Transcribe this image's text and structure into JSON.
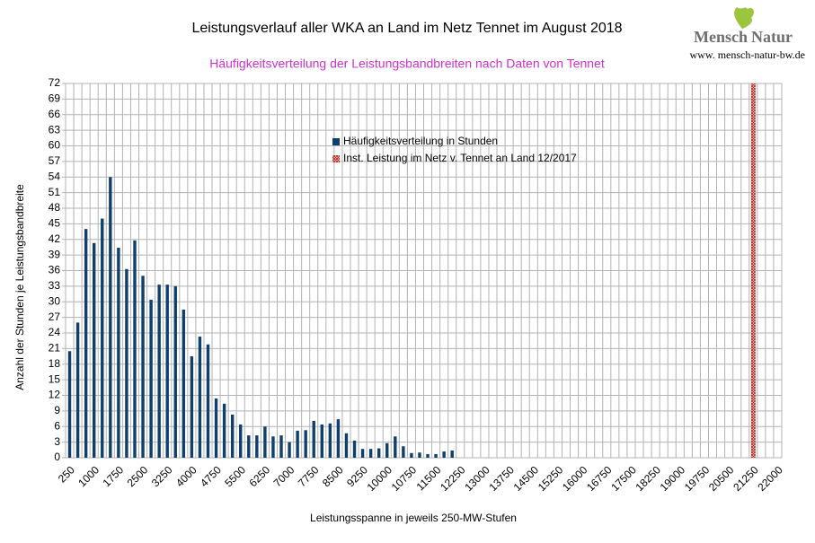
{
  "logo": {
    "word1": "Mensch",
    "word2": "Natur",
    "url": "www. mensch-natur-bw.de"
  },
  "chart_data": {
    "type": "bar",
    "title": "Leistungsverlauf aller WKA an Land im Netz Tennet im August 2018",
    "subtitle": "Häufigkeitsverteilung der Leistungsbandbreiten nach Daten von Tennet",
    "y_label": "Anzahl der Stunden je Leistungsbandbreite",
    "x_label": "Leistungsspanne in jeweils 250-MW-Stufen",
    "categories": [
      "250",
      null,
      null,
      "1000",
      null,
      null,
      "1750",
      null,
      null,
      "2500",
      null,
      null,
      "3250",
      null,
      null,
      "4000",
      null,
      null,
      "4750",
      null,
      null,
      "5500",
      null,
      null,
      "6250",
      null,
      null,
      "7000",
      null,
      null,
      "7750",
      null,
      null,
      "8500",
      null,
      null,
      "9250",
      null,
      null,
      "10000",
      null,
      null,
      "10750",
      null,
      null,
      "11500",
      null,
      null,
      "12250",
      null,
      null,
      "13000",
      null,
      null,
      "13750",
      null,
      null,
      "14500",
      null,
      null,
      "15250",
      null,
      null,
      "16000",
      null,
      null,
      "16750",
      null,
      null,
      "17500",
      null,
      null,
      "18250",
      null,
      null,
      "19000",
      null,
      null,
      "19750",
      null,
      null,
      "20500",
      null,
      null,
      "21250",
      null,
      null,
      "22000"
    ],
    "series": [
      {
        "name": "Häufigkeitsverteilung in Stunden",
        "color": "#0e3f6e",
        "values": [
          20.5,
          26,
          44,
          41.3,
          46,
          54,
          40.4,
          36.3,
          41.8,
          35,
          30.4,
          33.3,
          33.3,
          33,
          28.5,
          19.5,
          23.3,
          21.8,
          11.4,
          10.4,
          8.3,
          6.4,
          4.3,
          4.3,
          6,
          4.1,
          4.3,
          3,
          5.2,
          5.3,
          7.1,
          6.4,
          6.6,
          7.4,
          4.7,
          3.3,
          1.7,
          1.7,
          1.8,
          2.8,
          4.1,
          2.2,
          0.9,
          1,
          0.7,
          0.7,
          1.2,
          1.4,
          null,
          null,
          null,
          null,
          null,
          null,
          null,
          null,
          null,
          null,
          null,
          null,
          null,
          null,
          null,
          null,
          null,
          null,
          null,
          null,
          null,
          null,
          null,
          null,
          null,
          null,
          null,
          null,
          null,
          null,
          null,
          null,
          null,
          null,
          null,
          null,
          null,
          null,
          null,
          null
        ]
      },
      {
        "name": "Inst. Leistung im Netz v. Tennet an Land 12/2017",
        "color": "#b0302b",
        "pattern": "crosshatch",
        "values": [
          null,
          null,
          null,
          null,
          null,
          null,
          null,
          null,
          null,
          null,
          null,
          null,
          null,
          null,
          null,
          null,
          null,
          null,
          null,
          null,
          null,
          null,
          null,
          null,
          null,
          null,
          null,
          null,
          null,
          null,
          null,
          null,
          null,
          null,
          null,
          null,
          null,
          null,
          null,
          null,
          null,
          null,
          null,
          null,
          null,
          null,
          null,
          null,
          null,
          null,
          null,
          null,
          null,
          null,
          null,
          null,
          null,
          null,
          null,
          null,
          null,
          null,
          null,
          null,
          null,
          null,
          null,
          null,
          null,
          null,
          null,
          null,
          null,
          null,
          null,
          null,
          null,
          null,
          null,
          null,
          null,
          null,
          null,
          null,
          72,
          null,
          null,
          null
        ]
      }
    ],
    "ylim": [
      0,
      72
    ],
    "yticks": [
      0,
      3,
      6,
      9,
      12,
      15,
      18,
      21,
      24,
      27,
      30,
      33,
      36,
      39,
      42,
      45,
      48,
      51,
      54,
      57,
      60,
      63,
      66,
      69,
      72
    ],
    "grid": true
  }
}
